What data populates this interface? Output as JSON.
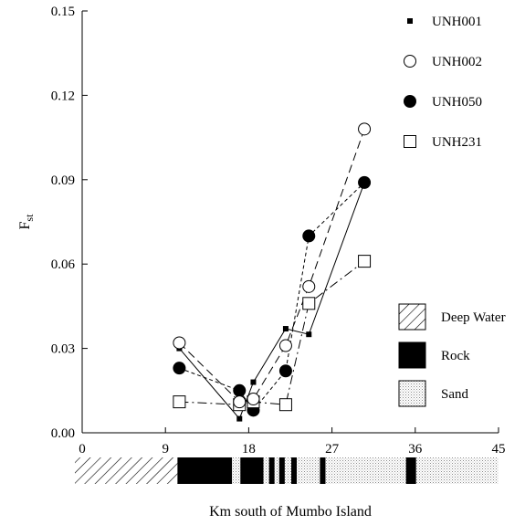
{
  "chart_data": {
    "type": "line",
    "title": "",
    "xlabel": "Km south of Mumbo Island",
    "ylabel": "F",
    "ylabel_sub": "st",
    "xlim": [
      0,
      45
    ],
    "ylim": [
      0.0,
      0.15
    ],
    "xticks": [
      0,
      9,
      18,
      27,
      36,
      45
    ],
    "yticks": [
      0.0,
      0.03,
      0.06,
      0.09,
      0.12,
      0.15
    ],
    "ytick_labels": [
      "0.00",
      "0.03",
      "0.06",
      "0.09",
      "0.12",
      "0.15"
    ],
    "grid": false,
    "legend_position": "top-right",
    "series": [
      {
        "name": "UNH001",
        "marker": "small-filled-square",
        "line": "solid",
        "x": [
          10.5,
          17,
          18.5,
          22,
          24.5,
          30.5
        ],
        "y": [
          0.03,
          0.005,
          0.018,
          0.037,
          0.035,
          0.089
        ]
      },
      {
        "name": "UNH002",
        "marker": "open-circle",
        "line": "long-dash",
        "x": [
          10.5,
          17,
          18.5,
          22,
          24.5,
          30.5
        ],
        "y": [
          0.032,
          0.011,
          0.012,
          0.031,
          0.052,
          0.108
        ]
      },
      {
        "name": "UNH050",
        "marker": "filled-circle",
        "line": "short-dash",
        "x": [
          10.5,
          17,
          18.5,
          22,
          24.5,
          30.5
        ],
        "y": [
          0.023,
          0.015,
          0.008,
          0.022,
          0.07,
          0.089
        ]
      },
      {
        "name": "UNH231",
        "marker": "open-square",
        "line": "dash-dot",
        "x": [
          10.5,
          17,
          18.5,
          22,
          24.5,
          30.5
        ],
        "y": [
          0.011,
          0.01,
          0.011,
          0.01,
          0.046,
          0.061
        ]
      }
    ],
    "habitat_legend": [
      {
        "name": "Deep Water",
        "pattern": "hatch"
      },
      {
        "name": "Rock",
        "pattern": "solid"
      },
      {
        "name": "Sand",
        "pattern": "dots"
      }
    ],
    "habitat_bar": [
      {
        "type": "Deep Water",
        "from": 0,
        "to": 10.3
      },
      {
        "type": "Rock",
        "from": 10.3,
        "to": 16.2
      },
      {
        "type": "Sand",
        "from": 16.2,
        "to": 17.1
      },
      {
        "type": "Rock",
        "from": 17.1,
        "to": 19.6
      },
      {
        "type": "Sand",
        "from": 19.6,
        "to": 20.2
      },
      {
        "type": "Rock",
        "from": 20.2,
        "to": 20.8
      },
      {
        "type": "Sand",
        "from": 20.8,
        "to": 21.3
      },
      {
        "type": "Rock",
        "from": 21.3,
        "to": 21.9
      },
      {
        "type": "Sand",
        "from": 21.9,
        "to": 22.6
      },
      {
        "type": "Rock",
        "from": 22.6,
        "to": 23.2
      },
      {
        "type": "Sand",
        "from": 23.2,
        "to": 25.7
      },
      {
        "type": "Rock",
        "from": 25.7,
        "to": 26.3
      },
      {
        "type": "Sand",
        "from": 26.3,
        "to": 35.0
      },
      {
        "type": "Rock",
        "from": 35.0,
        "to": 36.1
      },
      {
        "type": "Sand",
        "from": 36.1,
        "to": 45
      }
    ]
  }
}
